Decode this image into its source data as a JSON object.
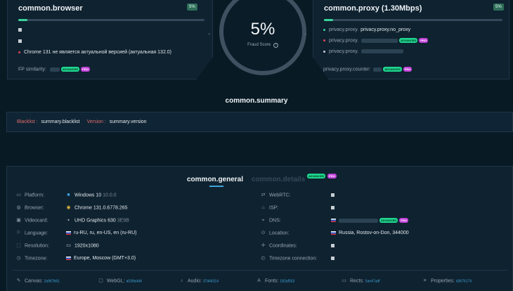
{
  "browser_panel": {
    "title": "common.browser",
    "score_badge": "5%",
    "progress": 0.05,
    "warning": "Chrome 131 не является актуальной версией (актуальная 132.0)",
    "fp_label": "FP similarity:",
    "tag_green": "ADVANCED",
    "tag_purple": "PRO"
  },
  "proxy_panel": {
    "title": "common.proxy  (1.30Mbps)",
    "score_badge": "5%",
    "progress": 0.05,
    "row1": "privacy.proxy.no_proxy",
    "counter_label": "privacy.proxy.counter:",
    "tag_green": "ADVANCED",
    "tag_purple": "PRO"
  },
  "score": {
    "value": "5%",
    "label": "Fraud Score",
    "info_icon": "info-icon"
  },
  "summary": {
    "title": "common.summary",
    "blacklist_label": "Blacklist :",
    "blacklist_value": "summary.blacklist",
    "version_label": "Version :",
    "version_value": "summary.version"
  },
  "tabs": {
    "general": "common.general",
    "details": "common.details",
    "tag_green": "ADVANCED",
    "tag_purple": "PRO"
  },
  "left_rows": [
    {
      "label": "Platform:",
      "value": "Windows 10",
      "sub": "10.0.0"
    },
    {
      "label": "Browser:",
      "value": "Chrome 131.0.6778.265",
      "sub": ""
    },
    {
      "label": "Videocard:",
      "value": "UHD Graphics 630",
      "sub": "3E9B"
    },
    {
      "label": "Language:",
      "value": "ru-RU, ru, en-US, en (ru-RU)",
      "sub": ""
    },
    {
      "label": "Resolution:",
      "value": "1920x1080",
      "sub": ""
    },
    {
      "label": "Timezone:",
      "value": "Europe, Moscow (GMT+3.0)",
      "sub": ""
    }
  ],
  "right_rows": [
    {
      "label": "WebRTC:",
      "value": ""
    },
    {
      "label": "ISP:",
      "value": ""
    },
    {
      "label": "DNS:",
      "value": ""
    },
    {
      "label": "Location:",
      "value": "Russia, Rostov-on-Don, 344000"
    },
    {
      "label": "Coordinates:",
      "value": ""
    },
    {
      "label": "Timezone connection:",
      "value": ""
    }
  ],
  "footer": [
    {
      "label": "Canvas:",
      "hash": "2a967b61"
    },
    {
      "label": "WebGL:",
      "hash": "a039a4d4"
    },
    {
      "label": "Audio:",
      "hash": "37d44314"
    },
    {
      "label": "Fonts:",
      "hash": "182af553"
    },
    {
      "label": "Rects:",
      "hash": "5ae47adf"
    },
    {
      "label": "Properties:",
      "hash": "d3676174"
    }
  ],
  "colors": {
    "accent": "#3ad39a",
    "warning": "#e0445a",
    "label_red": "#e06a6a",
    "background": "#081a24"
  }
}
